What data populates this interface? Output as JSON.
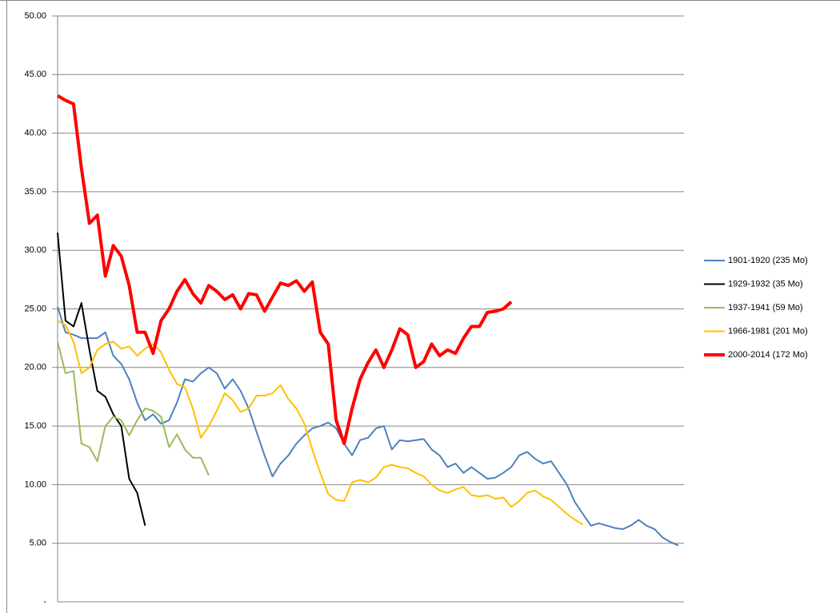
{
  "chart_data": {
    "type": "line",
    "ylim": [
      0,
      50
    ],
    "yticks": [
      {
        "value": 0,
        "label": "-"
      },
      {
        "value": 5,
        "label": "5.00"
      },
      {
        "value": 10,
        "label": "10.00"
      },
      {
        "value": 15,
        "label": "15.00"
      },
      {
        "value": 20,
        "label": "20.00"
      },
      {
        "value": 25,
        "label": "25.00"
      },
      {
        "value": 30,
        "label": "30.00"
      },
      {
        "value": 35,
        "label": "35.00"
      },
      {
        "value": 40,
        "label": "40.00"
      },
      {
        "value": 45,
        "label": "45.00"
      },
      {
        "value": 50,
        "label": "50.00"
      }
    ],
    "grid": true,
    "legend": "right",
    "series": [
      {
        "name": "1901-1920 (235 Mo)",
        "color": "#4f81bd",
        "width": 2,
        "values": [
          25.2,
          23,
          22.8,
          22.5,
          22.5,
          22.5,
          23,
          21,
          20.3,
          19,
          17,
          15.5,
          16,
          15.2,
          15.5,
          17,
          19,
          18.8,
          19.5,
          20,
          19.5,
          18.2,
          19,
          18,
          16.5,
          14.5,
          12.5,
          10.7,
          11.8,
          12.5,
          13.5,
          14.2,
          14.8,
          15,
          15.3,
          14.8,
          13.5,
          12.5,
          13.8,
          14,
          14.8,
          15,
          13,
          13.8,
          13.7,
          13.8,
          13.9,
          13,
          12.5,
          11.5,
          11.8,
          11,
          11.5,
          11,
          10.5,
          10.6,
          11,
          11.5,
          12.5,
          12.8,
          12.2,
          11.8,
          12,
          11,
          10,
          8.5,
          7.5,
          6.5,
          6.7,
          6.5,
          6.3,
          6.2,
          6.5,
          7,
          6.5,
          6.2,
          5.5,
          5.1,
          4.8
        ]
      },
      {
        "name": "1929-1932 (35 Mo)",
        "color": "#000000",
        "width": 2,
        "values": [
          31.5,
          24,
          23.5,
          25.5,
          21.5,
          18,
          17.5,
          16,
          15,
          10.5,
          9.3,
          6.5
        ]
      },
      {
        "name": "1937-1941 (59 Mo)",
        "color": "#9bbb59",
        "width": 2,
        "values": [
          22.2,
          19.5,
          19.7,
          13.5,
          13.2,
          12,
          15,
          15.8,
          15.5,
          14.2,
          15.5,
          16.5,
          16.3,
          15.8,
          13.2,
          14.3,
          13,
          12.3,
          12.3,
          10.8
        ]
      },
      {
        "name": "1966-1981 (201 Mo)",
        "color": "#ffc000",
        "width": 2,
        "values": [
          24,
          23.6,
          22.2,
          19.5,
          20,
          21.5,
          22,
          22.2,
          21.6,
          21.8,
          21,
          21.6,
          22,
          21.3,
          19.8,
          18.6,
          18.3,
          16.5,
          14,
          15,
          16.3,
          17.8,
          17.2,
          16.2,
          16.5,
          17.6,
          17.6,
          17.8,
          18.5,
          17.3,
          16.5,
          15.2,
          13,
          11,
          9.2,
          8.7,
          8.6,
          10.2,
          10.4,
          10.2,
          10.6,
          11.5,
          11.7,
          11.5,
          11.4,
          11,
          10.7,
          10,
          9.5,
          9.3,
          9.6,
          9.8,
          9.1,
          9,
          9.1,
          8.8,
          8.9,
          8.1,
          8.6,
          9.3,
          9.5,
          9,
          8.7,
          8.1,
          7.5,
          7,
          6.6
        ]
      },
      {
        "name": "2000-2014 (172 Mo)",
        "color": "#ff0000",
        "width": 4,
        "values": [
          43.2,
          42.8,
          42.5,
          37,
          32.3,
          33,
          27.8,
          30.4,
          29.5,
          27,
          23,
          23,
          21.2,
          24,
          25,
          26.5,
          27.5,
          26.3,
          25.5,
          27,
          26.5,
          25.8,
          26.2,
          25,
          26.3,
          26.2,
          24.8,
          26,
          27.2,
          27,
          27.4,
          26.5,
          27.3,
          23,
          22,
          15.5,
          13.5,
          16.5,
          19,
          20.4,
          21.5,
          20,
          21.5,
          23.3,
          22.8,
          20,
          20.5,
          22,
          21,
          21.5,
          21.2,
          22.5,
          23.5,
          23.5,
          24.7,
          24.8,
          25,
          25.6
        ]
      }
    ]
  }
}
